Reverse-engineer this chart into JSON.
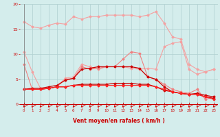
{
  "x": [
    0,
    1,
    2,
    3,
    4,
    5,
    6,
    7,
    8,
    9,
    10,
    11,
    12,
    13,
    14,
    15,
    16,
    17,
    18,
    19,
    20,
    21,
    22,
    23
  ],
  "series": [
    {
      "name": "rafales_top",
      "color": "#f5a0a0",
      "linewidth": 0.8,
      "marker": "D",
      "markersize": 1.5,
      "values": [
        16.5,
        15.5,
        15.2,
        15.8,
        16.2,
        16.0,
        17.5,
        17.0,
        17.5,
        17.5,
        17.8,
        17.8,
        17.8,
        17.8,
        17.5,
        17.8,
        18.5,
        16.2,
        13.5,
        13.0,
        8.0,
        7.0,
        6.5,
        7.0
      ]
    },
    {
      "name": "rafales_mid",
      "color": "#f5a0a0",
      "linewidth": 0.8,
      "marker": "D",
      "markersize": 1.5,
      "values": [
        10.5,
        6.5,
        3.2,
        3.2,
        3.5,
        5.2,
        5.5,
        8.0,
        7.5,
        7.0,
        7.5,
        7.5,
        7.5,
        7.2,
        7.0,
        7.2,
        7.0,
        11.5,
        12.2,
        12.5,
        7.0,
        6.0,
        6.5,
        7.0
      ]
    },
    {
      "name": "vent_light",
      "color": "#f08080",
      "linewidth": 0.8,
      "marker": "D",
      "markersize": 1.5,
      "values": [
        8.0,
        3.0,
        3.0,
        3.2,
        3.5,
        5.0,
        5.2,
        7.5,
        7.0,
        7.2,
        7.5,
        7.5,
        9.0,
        10.5,
        10.2,
        5.5,
        5.0,
        4.0,
        3.0,
        2.5,
        2.2,
        3.0,
        1.0,
        1.5
      ]
    },
    {
      "name": "vent_dark1",
      "color": "#cc0000",
      "linewidth": 0.9,
      "marker": "D",
      "markersize": 1.5,
      "values": [
        3.0,
        3.2,
        3.2,
        3.5,
        3.8,
        4.8,
        5.2,
        7.0,
        7.2,
        7.5,
        7.5,
        7.5,
        7.5,
        7.5,
        7.2,
        5.5,
        5.0,
        3.5,
        2.5,
        2.2,
        2.0,
        2.2,
        1.8,
        1.5
      ]
    },
    {
      "name": "vent_dark2",
      "color": "#cc0000",
      "linewidth": 0.9,
      "marker": "D",
      "markersize": 1.5,
      "values": [
        3.0,
        3.0,
        3.0,
        3.2,
        3.5,
        3.5,
        3.8,
        4.0,
        4.0,
        4.0,
        4.0,
        4.2,
        4.2,
        4.2,
        4.0,
        4.0,
        3.5,
        2.8,
        2.5,
        2.2,
        2.0,
        2.0,
        1.5,
        1.2
      ]
    },
    {
      "name": "vent_red",
      "color": "#ff2222",
      "linewidth": 0.8,
      "marker": "D",
      "markersize": 1.5,
      "values": [
        3.0,
        3.0,
        3.0,
        3.2,
        3.5,
        3.5,
        3.8,
        3.8,
        3.8,
        3.8,
        3.8,
        3.8,
        3.8,
        3.8,
        3.8,
        3.8,
        3.5,
        3.0,
        2.5,
        2.2,
        2.0,
        2.0,
        1.5,
        1.0
      ]
    }
  ],
  "xlabel": "Vent moyen/en rafales ( km/h )",
  "xlabel_color": "#cc0000",
  "xlabel_fontsize": 5.5,
  "bg_color": "#d4edec",
  "grid_color": "#b0d0d0",
  "tick_color": "#cc0000",
  "axis_color": "#cc0000",
  "ylim": [
    -0.5,
    20
  ],
  "yticks": [
    0,
    5,
    10,
    15,
    20
  ],
  "xticks": [
    0,
    1,
    2,
    3,
    4,
    5,
    6,
    7,
    8,
    9,
    10,
    11,
    12,
    13,
    14,
    15,
    16,
    17,
    18,
    19,
    20,
    21,
    22,
    23
  ]
}
